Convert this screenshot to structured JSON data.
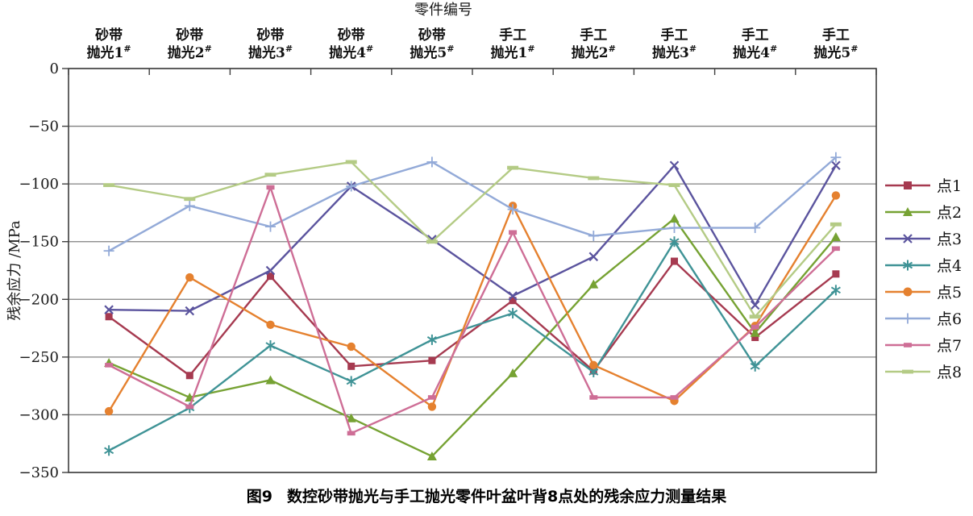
{
  "figure": {
    "number": "图9",
    "title": "数控砂带抛光与手工抛光零件叶盆叶背8点处的残余应力测量结果"
  },
  "chart_data": {
    "type": "line",
    "axis_title": "零件编号",
    "ylabel": "残余应力 /MPa",
    "ylim": [
      -350,
      0
    ],
    "yticks": [
      0,
      -50,
      -100,
      -150,
      -200,
      -250,
      -300,
      -350
    ],
    "grid": true,
    "legend_position": "right",
    "categories": [
      "砂带抛光1#",
      "砂带抛光2#",
      "砂带抛光3#",
      "砂带抛光4#",
      "砂带抛光5#",
      "手工抛光1#",
      "手工抛光2#",
      "手工抛光3#",
      "手工抛光4#",
      "手工抛光5#"
    ],
    "category_labels": [
      {
        "line1": "砂带",
        "line2": "抛光1",
        "sup": "#"
      },
      {
        "line1": "砂带",
        "line2": "抛光2",
        "sup": "#"
      },
      {
        "line1": "砂带",
        "line2": "抛光3",
        "sup": "#"
      },
      {
        "line1": "砂带",
        "line2": "抛光4",
        "sup": "#"
      },
      {
        "line1": "砂带",
        "line2": "抛光5",
        "sup": "#"
      },
      {
        "line1": "手工",
        "line2": "抛光1",
        "sup": "#"
      },
      {
        "line1": "手工",
        "line2": "抛光2",
        "sup": "#"
      },
      {
        "line1": "手工",
        "line2": "抛光3",
        "sup": "#"
      },
      {
        "line1": "手工",
        "line2": "抛光4",
        "sup": "#"
      },
      {
        "line1": "手工",
        "line2": "抛光5",
        "sup": "#"
      }
    ],
    "series": [
      {
        "name": "点1",
        "color": "#A63A50",
        "marker": "square",
        "values": [
          -215,
          -266,
          -180,
          -258,
          -253,
          -201,
          -262,
          -167,
          -233,
          -178
        ]
      },
      {
        "name": "点2",
        "color": "#76A233",
        "marker": "triangle",
        "values": [
          -255,
          -285,
          -270,
          -303,
          -336,
          -264,
          -187,
          -130,
          -229,
          -146
        ]
      },
      {
        "name": "点3",
        "color": "#5B549E",
        "marker": "x",
        "values": [
          -209,
          -210,
          -175,
          -102,
          -148,
          -197,
          -163,
          -84,
          -205,
          -84
        ]
      },
      {
        "name": "点4",
        "color": "#3F9396",
        "marker": "asterisk",
        "values": [
          -331,
          -294,
          -240,
          -271,
          -235,
          -212,
          -263,
          -150,
          -258,
          -192
        ]
      },
      {
        "name": "点5",
        "color": "#E5812F",
        "marker": "circle",
        "values": [
          -297,
          -181,
          -222,
          -241,
          -293,
          -119,
          -257,
          -288,
          -223,
          -110
        ]
      },
      {
        "name": "点6",
        "color": "#93AAD8",
        "marker": "plus",
        "values": [
          -158,
          -119,
          -137,
          -102,
          -81,
          -122,
          -145,
          -138,
          -138,
          -77
        ]
      },
      {
        "name": "点7",
        "color": "#CE6E96",
        "marker": "dash-small",
        "values": [
          -257,
          -293,
          -103,
          -316,
          -285,
          -142,
          -285,
          -285,
          -224,
          -156
        ]
      },
      {
        "name": "点8",
        "color": "#B4CB85",
        "marker": "dash",
        "values": [
          -101,
          -113,
          -92,
          -81,
          -150,
          -86,
          -95,
          -101,
          -215,
          -135
        ]
      }
    ],
    "plot_style": {
      "border_color": "#3f3f3f",
      "grid_color": "#808080",
      "text_color": "#1a1a1a"
    }
  }
}
